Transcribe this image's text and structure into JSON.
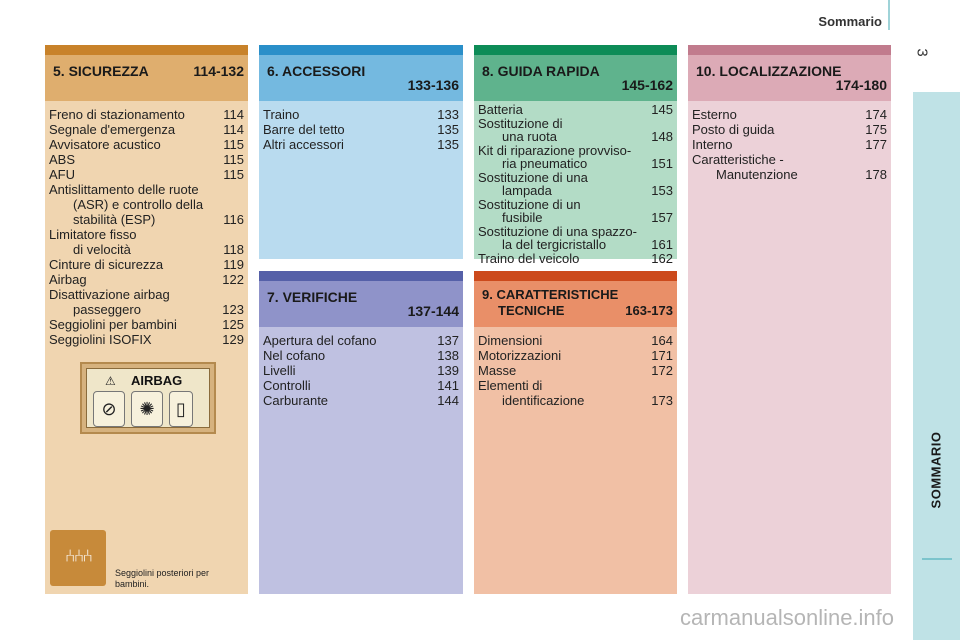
{
  "header": {
    "title": "Sommario",
    "page_number": "3"
  },
  "sidebar": {
    "label": "SOMMARIO"
  },
  "sections": {
    "s5": {
      "title": "5. SICUREZZA",
      "range": "114-132",
      "items": [
        {
          "t": "Freno di stazionamento",
          "p": "114"
        },
        {
          "t": "Segnale d'emergenza",
          "p": "114"
        },
        {
          "t": "Avvisatore acustico",
          "p": "115"
        },
        {
          "t": "ABS",
          "p": "115"
        },
        {
          "t": "AFU",
          "p": "115"
        },
        {
          "t": "Antislittamento delle ruote",
          "p": ""
        },
        {
          "t": "(ASR) e controllo della",
          "p": ""
        },
        {
          "t": "stabilità (ESP)",
          "p": "116"
        },
        {
          "t": "Limitatore fisso",
          "p": ""
        },
        {
          "t": "di velocità",
          "p": "118"
        },
        {
          "t": "Cinture di sicurezza",
          "p": "119"
        },
        {
          "t": "Airbag",
          "p": "122"
        },
        {
          "t": "Disattivazione airbag",
          "p": ""
        },
        {
          "t": "passeggero",
          "p": "123"
        },
        {
          "t": "Seggiolini per bambini",
          "p": "125"
        },
        {
          "t": "Seggiolini ISOFIX",
          "p": "129"
        }
      ],
      "airbag_label": "AIRBAG",
      "seat_caption": "Seggiolini posteriori per bambini."
    },
    "s6": {
      "title": "6. ACCESSORI",
      "range": "133-136",
      "items": [
        {
          "t": "Traino",
          "p": "133"
        },
        {
          "t": "Barre del tetto",
          "p": "135"
        },
        {
          "t": "Altri accessori",
          "p": "135"
        }
      ]
    },
    "s7": {
      "title": "7. VERIFICHE",
      "range": "137-144",
      "items": [
        {
          "t": "Apertura del cofano",
          "p": "137"
        },
        {
          "t": "Nel cofano",
          "p": "138"
        },
        {
          "t": "Livelli",
          "p": "139"
        },
        {
          "t": "Controlli",
          "p": "141"
        },
        {
          "t": "Carburante",
          "p": "144"
        }
      ]
    },
    "s8": {
      "title": "8. GUIDA RAPIDA",
      "range": "145-162",
      "items": [
        {
          "t": "Batteria",
          "p": "145"
        },
        {
          "t": "Sostituzione di",
          "p": ""
        },
        {
          "t": "una ruota",
          "p": "148"
        },
        {
          "t": "Kit di riparazione provviso-",
          "p": ""
        },
        {
          "t": "ria pneumatico",
          "p": "151"
        },
        {
          "t": "Sostituzione di una",
          "p": ""
        },
        {
          "t": "lampada",
          "p": "153"
        },
        {
          "t": "Sostituzione di un",
          "p": ""
        },
        {
          "t": "fusibile",
          "p": "157"
        },
        {
          "t": "Sostituzione di una spazzo-",
          "p": ""
        },
        {
          "t": "la del tergicristallo",
          "p": "161"
        },
        {
          "t": "Traino del veicolo",
          "p": "162"
        }
      ]
    },
    "s9": {
      "title": "9. CARATTERISTICHE",
      "title2": "TECNICHE",
      "range": "163-173",
      "items": [
        {
          "t": "Dimensioni",
          "p": "164"
        },
        {
          "t": "Motorizzazioni",
          "p": "171"
        },
        {
          "t": "Masse",
          "p": "172"
        },
        {
          "t": "Elementi di",
          "p": ""
        },
        {
          "t": "identificazione",
          "p": "173"
        }
      ]
    },
    "s10": {
      "title": "10. LOCALIZZAZIONE",
      "range": "174-180",
      "items": [
        {
          "t": "Esterno",
          "p": "174"
        },
        {
          "t": "Posto di guida",
          "p": "175"
        },
        {
          "t": "Interno",
          "p": "177"
        },
        {
          "t": "Caratteristiche -",
          "p": ""
        },
        {
          "t": "Manutenzione",
          "p": "178"
        }
      ]
    }
  },
  "watermark": "carmanualsonline.info",
  "colors": {
    "s5_bar": "#c8822a",
    "s5_head": "#dfae6e",
    "s5_body": "#f0d5b0",
    "s6_bar": "#2a8fc9",
    "s6_head": "#74b9e0",
    "s6_body": "#b9dbef",
    "s7_bar": "#5560a8",
    "s7_head": "#8f93c9",
    "s7_body": "#bfc1e1",
    "s8_bar": "#0d8c57",
    "s8_head": "#5fb38d",
    "s8_body": "#b3dcc6",
    "s9_bar": "#cc4a1c",
    "s9_head": "#e98f68",
    "s9_body": "#f1c0a5",
    "s10_bar": "#c17b8d",
    "s10_head": "#dcaab6",
    "s10_body": "#ecd1d8"
  }
}
